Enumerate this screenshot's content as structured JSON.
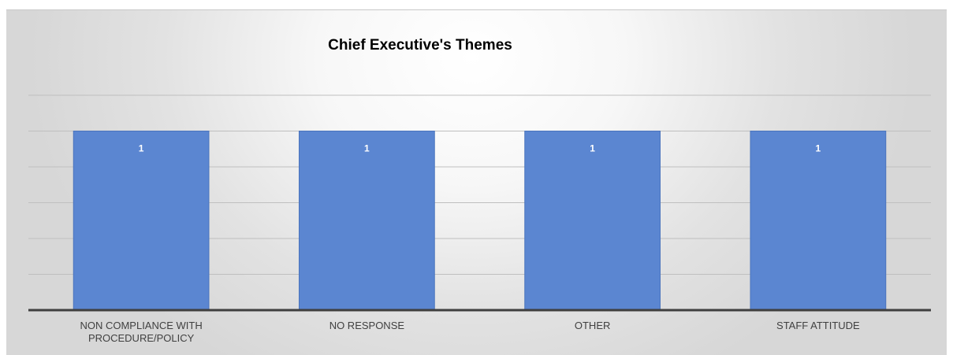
{
  "chart_data": {
    "type": "bar",
    "title": "Chief Executive's Themes",
    "categories": [
      [
        "NON COMPLIANCE WITH",
        "PROCEDURE/POLICY"
      ],
      [
        "NO RESPONSE"
      ],
      [
        "OTHER"
      ],
      [
        "STAFF ATTITUDE"
      ]
    ],
    "values": [
      1,
      1,
      1,
      1
    ],
    "data_labels": [
      "1",
      "1",
      "1",
      "1"
    ],
    "ylim": [
      0,
      1.2
    ],
    "grid": true,
    "y_axis_visible": false,
    "legend": "none",
    "bar_color": "#5b86d1",
    "bar_edge_color": "#4a74bd",
    "axis_color": "#3f3f3f",
    "gridline_color": "#bfbfbf"
  }
}
